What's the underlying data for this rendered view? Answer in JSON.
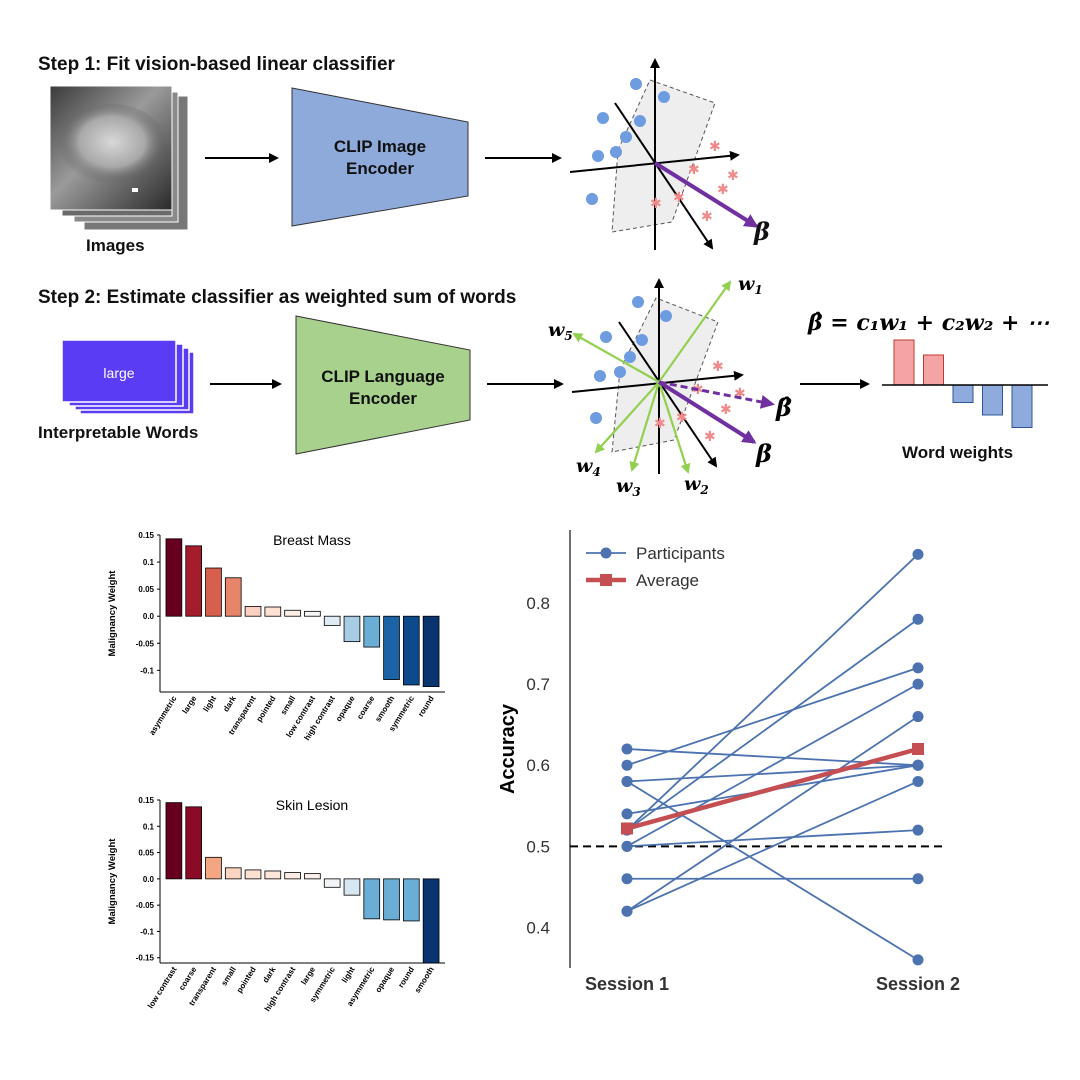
{
  "step1": {
    "title": "Step 1: Fit vision-based linear classifier",
    "images_caption": "Images",
    "encoder_line1": "CLIP Image",
    "encoder_line2": "Encoder",
    "beta_label": "β"
  },
  "step2": {
    "title": "Step 2: Estimate classifier as weighted sum of words",
    "card_word": "large",
    "words_caption": "Interpretable Words",
    "encoder_line1": "CLIP Language",
    "encoder_line2": "Encoder",
    "beta_label": "β",
    "beta_hat_label": "β̂",
    "w_labels": [
      "w",
      "w",
      "w",
      "w",
      "w"
    ],
    "w_subscripts": [
      "1",
      "2",
      "3",
      "4",
      "5"
    ],
    "equation": "β̂ = c₁w₁ + c₂w₂ + ⋯",
    "word_weights_caption": "Word weights",
    "word_weights": [
      0.9,
      0.6,
      -0.35,
      -0.6,
      -0.85
    ]
  },
  "colors": {
    "image_encoder": "#8eaadb",
    "language_encoder": "#a9d18e",
    "blue_point": "#6e9ce0",
    "red_point": "#f08a8a",
    "beta_arrow": "#7030a0",
    "w_arrow": "#92d050",
    "card": "#5b3cf5",
    "pos_bar": "#f4a4a4",
    "neg_bar": "#8faadc",
    "participant": "#4c72b0",
    "average": "#c44e52"
  },
  "chart_data": [
    {
      "type": "bar",
      "title": "Breast Mass",
      "ylabel": "Malignancy Weight",
      "ylim": [
        -0.14,
        0.15
      ],
      "yticks": [
        "0.15",
        "0.1",
        "0.05",
        "0.0",
        "-0.05",
        "-0.1"
      ],
      "categories": [
        "asymmetric",
        "large",
        "light",
        "dark",
        "transparent",
        "pointed",
        "small",
        "low contrast",
        "high contrast",
        "opaque",
        "coarse",
        "smooth",
        "symmetric",
        "round"
      ],
      "values": [
        0.143,
        0.13,
        0.089,
        0.071,
        0.018,
        0.017,
        0.011,
        0.009,
        -0.017,
        -0.047,
        -0.057,
        -0.117,
        -0.127,
        -0.13
      ],
      "colors": [
        "#67001f",
        "#a51d2d",
        "#d6604d",
        "#e7856a",
        "#fbd0c0",
        "#fce0d2",
        "#fdeee6",
        "#f7f7f7",
        "#dfebf3",
        "#a6cde3",
        "#6aaed6",
        "#1b62a6",
        "#0c4a8c",
        "#0a3470"
      ]
    },
    {
      "type": "bar",
      "title": "Skin Lesion",
      "ylabel": "Malignancy Weight",
      "ylim": [
        -0.16,
        0.15
      ],
      "yticks": [
        "0.15",
        "0.1",
        "0.05",
        "0.0",
        "-0.05",
        "-0.1",
        "-0.15"
      ],
      "categories": [
        "low contrast",
        "coarse",
        "transparent",
        "small",
        "pointed",
        "dark",
        "high contrast",
        "large",
        "symmetric",
        "light",
        "asymmetric",
        "opaque",
        "round",
        "smooth"
      ],
      "values": [
        0.145,
        0.137,
        0.041,
        0.021,
        0.017,
        0.015,
        0.012,
        0.01,
        -0.016,
        -0.031,
        -0.076,
        -0.078,
        -0.08,
        -0.16
      ],
      "colors": [
        "#67001f",
        "#8b0a26",
        "#f4a582",
        "#fcd5c2",
        "#fce0d2",
        "#fde6da",
        "#fdece3",
        "#fdf0ea",
        "#f2f5f8",
        "#d6e7f2",
        "#6aaed6",
        "#6aaed6",
        "#6aaed6",
        "#0a3470"
      ]
    },
    {
      "type": "line",
      "xlabel": "",
      "ylabel": "Accuracy",
      "categories": [
        "Session 1",
        "Session 2"
      ],
      "ylim": [
        0.35,
        0.89
      ],
      "yticks": [
        "0.4",
        "0.5",
        "0.6",
        "0.7",
        "0.8"
      ],
      "chance_level": 0.5,
      "legend": [
        "Participants",
        "Average"
      ],
      "participants": [
        [
          0.62,
          0.6
        ],
        [
          0.6,
          0.72
        ],
        [
          0.58,
          0.36
        ],
        [
          0.58,
          0.6
        ],
        [
          0.54,
          0.6
        ],
        [
          0.52,
          0.86
        ],
        [
          0.52,
          0.78
        ],
        [
          0.5,
          0.7
        ],
        [
          0.5,
          0.52
        ],
        [
          0.46,
          0.46
        ],
        [
          0.42,
          0.66
        ],
        [
          0.42,
          0.58
        ]
      ],
      "average": [
        0.522,
        0.62
      ]
    }
  ]
}
